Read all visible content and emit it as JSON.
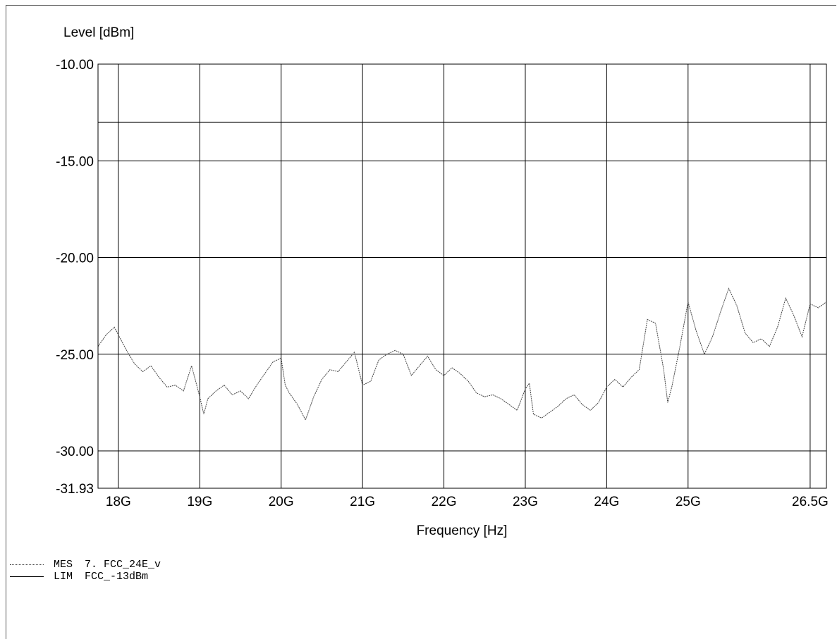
{
  "chart_data": {
    "type": "line",
    "ylabel": "Level [dBm]",
    "xlabel": "Frequency [Hz]",
    "xlim": [
      17.75,
      26.7
    ],
    "ylim": [
      -31.93,
      -10.0
    ],
    "y_ticks": [
      {
        "value": -10.0,
        "label": "-10.00"
      },
      {
        "value": -15.0,
        "label": "-15.00"
      },
      {
        "value": -20.0,
        "label": "-20.00"
      },
      {
        "value": -25.0,
        "label": "-25.00"
      },
      {
        "value": -30.0,
        "label": "-30.00"
      },
      {
        "value": -31.93,
        "label": "-31.93"
      }
    ],
    "x_ticks": [
      {
        "value": 18,
        "label": "18G"
      },
      {
        "value": 19,
        "label": "19G"
      },
      {
        "value": 20,
        "label": "20G"
      },
      {
        "value": 21,
        "label": "21G"
      },
      {
        "value": 22,
        "label": "22G"
      },
      {
        "value": 23,
        "label": "23G"
      },
      {
        "value": 24,
        "label": "24G"
      },
      {
        "value": 25,
        "label": "25G"
      },
      {
        "value": 26.5,
        "label": "26.5G"
      }
    ],
    "grid": true,
    "series": [
      {
        "name": "FCC_24E_v",
        "legend_code": "MES",
        "legend_text": "7. FCC_24E_v",
        "style": "dotted",
        "color": "#444444",
        "x": [
          17.75,
          17.85,
          17.95,
          18.0,
          18.1,
          18.2,
          18.3,
          18.4,
          18.5,
          18.6,
          18.7,
          18.8,
          18.9,
          19.0,
          19.05,
          19.1,
          19.2,
          19.3,
          19.4,
          19.5,
          19.6,
          19.7,
          19.8,
          19.9,
          20.0,
          20.05,
          20.1,
          20.2,
          20.3,
          20.4,
          20.5,
          20.6,
          20.7,
          20.8,
          20.9,
          21.0,
          21.1,
          21.2,
          21.3,
          21.4,
          21.5,
          21.6,
          21.7,
          21.8,
          21.9,
          22.0,
          22.1,
          22.2,
          22.3,
          22.4,
          22.5,
          22.6,
          22.7,
          22.8,
          22.9,
          23.0,
          23.05,
          23.1,
          23.2,
          23.3,
          23.4,
          23.5,
          23.6,
          23.7,
          23.8,
          23.9,
          24.0,
          24.1,
          24.2,
          24.3,
          24.4,
          24.5,
          24.6,
          24.7,
          24.75,
          24.8,
          24.9,
          25.0,
          25.1,
          25.2,
          25.3,
          25.4,
          25.5,
          25.6,
          25.7,
          25.8,
          25.9,
          26.0,
          26.1,
          26.2,
          26.3,
          26.4,
          26.5,
          26.6,
          26.7
        ],
        "y": [
          -24.6,
          -24.0,
          -23.6,
          -24.0,
          -24.8,
          -25.5,
          -25.9,
          -25.6,
          -26.2,
          -26.7,
          -26.6,
          -26.9,
          -25.6,
          -27.2,
          -28.1,
          -27.3,
          -26.9,
          -26.6,
          -27.1,
          -26.9,
          -27.3,
          -26.6,
          -26.0,
          -25.4,
          -25.2,
          -26.6,
          -27.0,
          -27.6,
          -28.4,
          -27.2,
          -26.3,
          -25.8,
          -25.9,
          -25.4,
          -24.9,
          -26.6,
          -26.4,
          -25.3,
          -25.0,
          -24.8,
          -25.0,
          -26.1,
          -25.6,
          -25.1,
          -25.8,
          -26.1,
          -25.7,
          -26.0,
          -26.4,
          -27.0,
          -27.2,
          -27.1,
          -27.3,
          -27.6,
          -27.9,
          -26.8,
          -26.5,
          -28.1,
          -28.3,
          -28.0,
          -27.7,
          -27.3,
          -27.1,
          -27.6,
          -27.9,
          -27.5,
          -26.7,
          -26.3,
          -26.7,
          -26.2,
          -25.8,
          -23.2,
          -23.4,
          -25.8,
          -27.5,
          -26.7,
          -24.6,
          -22.3,
          -23.8,
          -25.0,
          -24.1,
          -22.8,
          -21.6,
          -22.5,
          -23.9,
          -24.4,
          -24.2,
          -24.6,
          -23.6,
          -22.1,
          -23.0,
          -24.1,
          -22.4,
          -22.6,
          -22.3
        ]
      },
      {
        "name": "FCC_-13dBm",
        "legend_code": "LIM",
        "legend_text": "FCC_-13dBm",
        "style": "solid",
        "color": "#000000",
        "x": [
          17.75,
          26.7
        ],
        "y": [
          -13.0,
          -13.0
        ]
      }
    ]
  }
}
